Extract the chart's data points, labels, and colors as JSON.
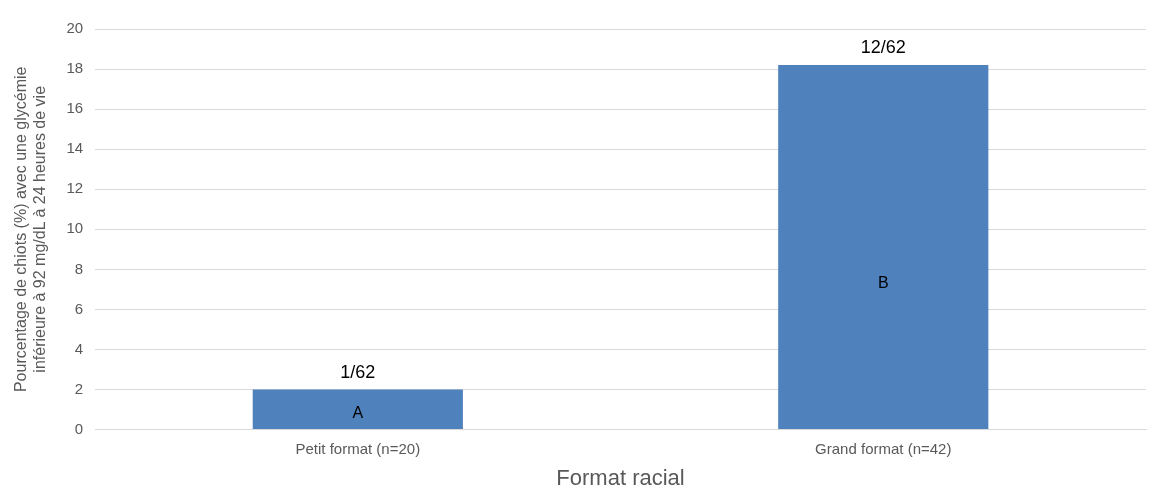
{
  "chart_data": {
    "type": "bar",
    "xlabel": "Format racial",
    "ylabel": "Pourcentage de chiots (%) avec une glycémie inférieure à 92 mg/dL à 24 heures de vie",
    "categories": [
      "Petit format (n=20)",
      "Grand format (n=42)"
    ],
    "values": [
      2.0,
      18.2
    ],
    "color": "#4f81bd",
    "value_labels": [
      "1/62",
      "12/62"
    ],
    "annotations": [
      "A",
      "B"
    ],
    "ylim": [
      0,
      20
    ],
    "yticks": [
      0,
      2,
      4,
      6,
      8,
      10,
      12,
      14,
      16,
      18,
      20
    ],
    "grid": "y",
    "legend": false
  }
}
